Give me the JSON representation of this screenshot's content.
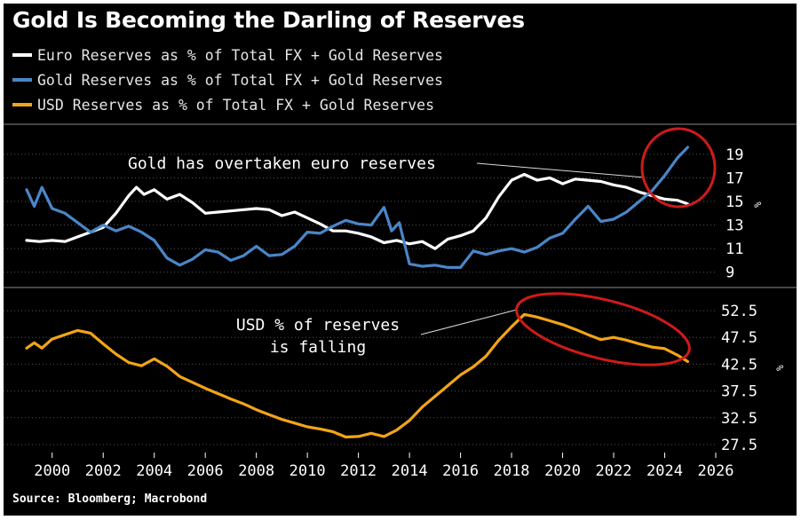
{
  "title": "Gold Is Becoming the Darling of Reserves",
  "source": "Source: Bloomberg; Macrobond",
  "colors": {
    "background": "#000000",
    "euro": "#ffffff",
    "gold": "#4a86c8",
    "usd": "#f2a516",
    "grid": "#555555",
    "annotation_ring": "#d11a1a"
  },
  "legend": [
    {
      "label": "Euro Reserves as % of Total FX + Gold Reserves",
      "color": "#ffffff"
    },
    {
      "label": "Gold Reserves as % of Total FX + Gold Reserves",
      "color": "#4a86c8"
    },
    {
      "label": "USD Reserves as % of Total FX + Gold Reserves",
      "color": "#f2a516"
    }
  ],
  "annotations": {
    "top": "Gold has overtaken euro reserves",
    "bottom_line1": "USD % of reserves",
    "bottom_line2": "is falling"
  },
  "chart_data": [
    {
      "type": "line",
      "panel": "top",
      "ylabel": "%",
      "ylim": [
        8,
        20.5
      ],
      "xlim": [
        1999,
        2026
      ],
      "yticks": [
        9,
        11,
        13,
        15,
        17,
        19
      ],
      "grid": true,
      "series": [
        {
          "name": "Euro Reserves as % of Total FX + Gold Reserves",
          "color": "#ffffff",
          "x": [
            1999.0,
            1999.5,
            2000.0,
            2000.5,
            2001.0,
            2001.5,
            2002.0,
            2002.5,
            2003.0,
            2003.3,
            2003.6,
            2004.0,
            2004.5,
            2005.0,
            2005.5,
            2006.0,
            2006.5,
            2007.0,
            2007.5,
            2008.0,
            2008.5,
            2009.0,
            2009.5,
            2010.0,
            2010.5,
            2011.0,
            2011.5,
            2012.0,
            2012.5,
            2013.0,
            2013.5,
            2014.0,
            2014.5,
            2015.0,
            2015.5,
            2016.0,
            2016.5,
            2017.0,
            2017.5,
            2018.0,
            2018.5,
            2019.0,
            2019.5,
            2020.0,
            2020.5,
            2021.0,
            2021.5,
            2022.0,
            2022.5,
            2023.0,
            2023.5,
            2024.0,
            2024.5,
            2024.9
          ],
          "y": [
            11.7,
            11.6,
            11.7,
            11.6,
            12.0,
            12.4,
            12.8,
            14.0,
            15.5,
            16.2,
            15.6,
            16.0,
            15.2,
            15.6,
            14.9,
            14.0,
            14.1,
            14.2,
            14.3,
            14.4,
            14.3,
            13.8,
            14.1,
            13.6,
            13.1,
            12.5,
            12.5,
            12.3,
            12.0,
            11.5,
            11.7,
            11.4,
            11.6,
            11.0,
            11.8,
            12.1,
            12.5,
            13.6,
            15.4,
            16.8,
            17.3,
            16.8,
            17.0,
            16.5,
            16.9,
            16.8,
            16.7,
            16.4,
            16.2,
            15.8,
            15.5,
            15.2,
            15.1,
            14.8
          ]
        },
        {
          "name": "Gold Reserves as % of Total FX + Gold Reserves",
          "color": "#4a86c8",
          "x": [
            1999.0,
            1999.3,
            1999.6,
            2000.0,
            2000.5,
            2001.0,
            2001.5,
            2002.0,
            2002.5,
            2003.0,
            2003.5,
            2004.0,
            2004.5,
            2005.0,
            2005.5,
            2006.0,
            2006.5,
            2007.0,
            2007.5,
            2008.0,
            2008.5,
            2009.0,
            2009.5,
            2010.0,
            2010.5,
            2011.0,
            2011.5,
            2012.0,
            2012.5,
            2013.0,
            2013.3,
            2013.6,
            2014.0,
            2014.5,
            2015.0,
            2015.5,
            2016.0,
            2016.5,
            2017.0,
            2017.5,
            2018.0,
            2018.5,
            2019.0,
            2019.5,
            2020.0,
            2020.5,
            2021.0,
            2021.5,
            2022.0,
            2022.5,
            2023.0,
            2023.5,
            2024.0,
            2024.5,
            2024.9
          ],
          "y": [
            16.0,
            14.6,
            16.2,
            14.4,
            14.0,
            13.2,
            12.4,
            13.0,
            12.5,
            12.9,
            12.4,
            11.7,
            10.2,
            9.6,
            10.1,
            10.9,
            10.7,
            10.0,
            10.4,
            11.2,
            10.4,
            10.5,
            11.2,
            12.4,
            12.3,
            12.9,
            13.4,
            13.1,
            13.0,
            14.5,
            12.5,
            13.2,
            9.7,
            9.5,
            9.6,
            9.4,
            9.4,
            10.8,
            10.5,
            10.8,
            11.0,
            10.7,
            11.1,
            11.9,
            12.3,
            13.5,
            14.6,
            13.3,
            13.5,
            14.1,
            15.0,
            15.9,
            17.2,
            18.7,
            19.6
          ]
        }
      ]
    },
    {
      "type": "line",
      "panel": "bottom",
      "ylabel": "%",
      "ylim": [
        26,
        54.5
      ],
      "xlim": [
        1999,
        2026
      ],
      "yticks": [
        27.5,
        32.5,
        37.5,
        42.5,
        47.5,
        52.5
      ],
      "xticks": [
        2000,
        2002,
        2004,
        2006,
        2008,
        2010,
        2012,
        2014,
        2016,
        2018,
        2020,
        2022,
        2024,
        2026
      ],
      "grid": true,
      "series": [
        {
          "name": "USD Reserves as % of Total FX + Gold Reserves",
          "color": "#f2a516",
          "x": [
            1999.0,
            1999.3,
            1999.6,
            2000.0,
            2000.5,
            2001.0,
            2001.5,
            2002.0,
            2002.5,
            2003.0,
            2003.5,
            2004.0,
            2004.5,
            2005.0,
            2005.5,
            2006.0,
            2006.5,
            2007.0,
            2007.5,
            2008.0,
            2008.5,
            2009.0,
            2009.5,
            2010.0,
            2010.5,
            2011.0,
            2011.5,
            2012.0,
            2012.5,
            2013.0,
            2013.5,
            2014.0,
            2014.5,
            2015.0,
            2015.5,
            2016.0,
            2016.5,
            2017.0,
            2017.5,
            2018.0,
            2018.5,
            2019.0,
            2019.5,
            2020.0,
            2020.5,
            2021.0,
            2021.5,
            2022.0,
            2022.5,
            2023.0,
            2023.5,
            2024.0,
            2024.5,
            2024.9
          ],
          "y": [
            45.5,
            46.5,
            45.5,
            47.2,
            48.0,
            48.8,
            48.3,
            46.3,
            44.4,
            42.8,
            42.2,
            43.5,
            42.1,
            40.2,
            39.1,
            38.0,
            37.0,
            36.0,
            35.1,
            34.0,
            33.1,
            32.2,
            31.5,
            30.8,
            30.4,
            29.9,
            28.9,
            29.0,
            29.6,
            29.0,
            30.2,
            32.0,
            34.5,
            36.5,
            38.5,
            40.5,
            42.0,
            44.0,
            47.0,
            49.5,
            51.8,
            51.3,
            50.6,
            49.9,
            49.0,
            48.0,
            47.1,
            47.5,
            47.0,
            46.3,
            45.7,
            45.4,
            44.2,
            43.0
          ]
        }
      ]
    }
  ]
}
